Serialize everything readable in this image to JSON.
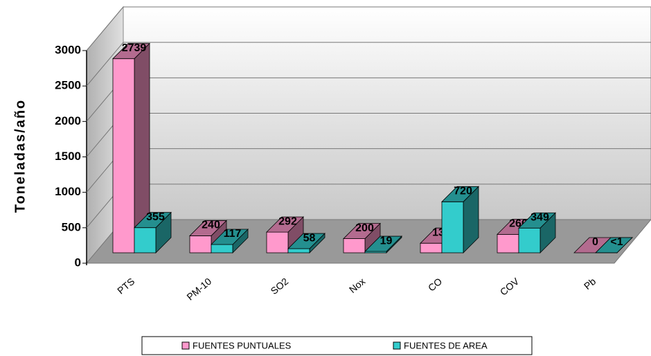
{
  "chart_data": {
    "type": "bar3d",
    "y_label": "Toneladas/año",
    "categories": [
      "PTS",
      "PM-10",
      "SO2",
      "Nox",
      "CO",
      "COV",
      "Pb"
    ],
    "series": [
      {
        "name": "FUENTES PUNTUALES",
        "color": "#ff99cc",
        "values": [
          2739,
          240,
          292,
          200,
          135,
          260,
          0
        ]
      },
      {
        "name": "FUENTES DE AREA",
        "color": "#33cccc",
        "values": [
          355,
          117,
          58,
          19,
          720,
          349,
          0.5
        ],
        "value_labels": [
          "355",
          "117",
          "58",
          "19",
          "720",
          "349",
          "<1"
        ]
      }
    ],
    "ylim": [
      0,
      3000
    ],
    "yticks": [
      0,
      500,
      1000,
      1500,
      2000,
      2500,
      3000
    ],
    "grid": true,
    "legend": "bottom"
  }
}
